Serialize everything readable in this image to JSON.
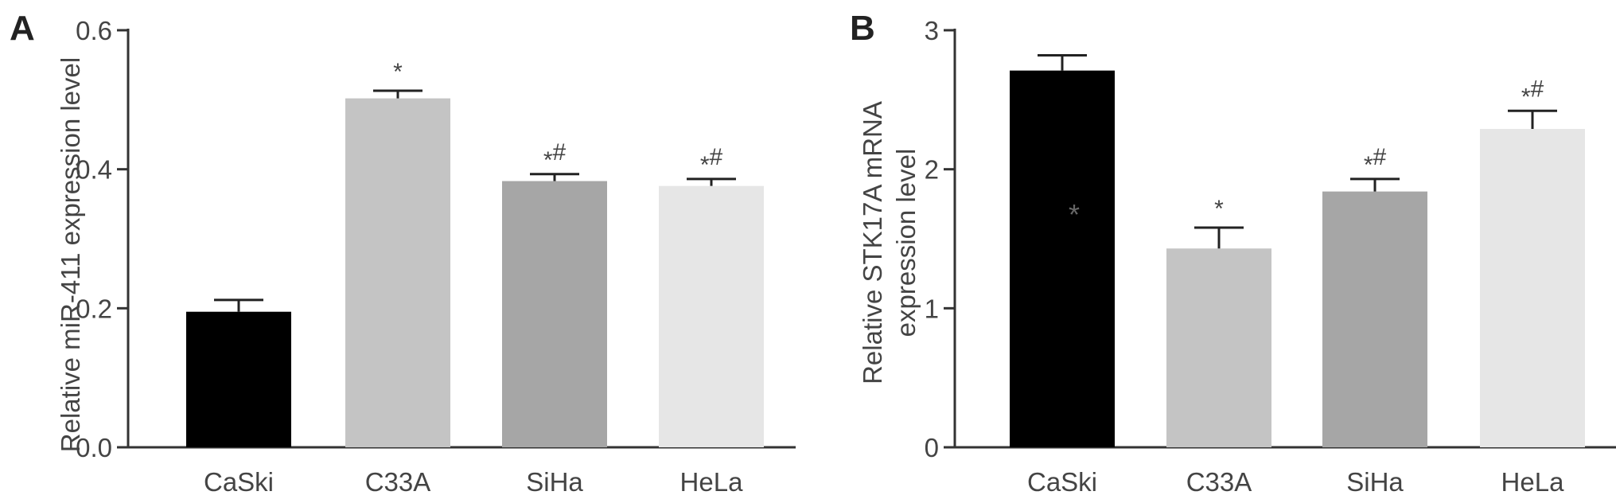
{
  "chart_data": [
    {
      "panel_label": "A",
      "type": "bar",
      "categories": [
        "CaSki",
        "C33A",
        "SiHa",
        "HeLa"
      ],
      "values": [
        0.195,
        0.502,
        0.383,
        0.376
      ],
      "errors": [
        0.017,
        0.011,
        0.01,
        0.01
      ],
      "annotations": [
        "",
        "*",
        "*#",
        "*#"
      ],
      "bar_colors": [
        "#000000",
        "#c4c4c4",
        "#a6a6a6",
        "#e6e6e6"
      ],
      "ylabel": "Relative miR-411 expression level",
      "ylim": [
        0,
        0.6
      ],
      "yticks": [
        0.0,
        0.2,
        0.4,
        0.6
      ],
      "ytick_labels": [
        "0.0",
        "0.2",
        "0.4",
        "0.6"
      ],
      "grid": false
    },
    {
      "panel_label": "B",
      "type": "bar",
      "categories": [
        "CaSki",
        "C33A",
        "SiHa",
        "HeLa"
      ],
      "values": [
        2.71,
        1.43,
        1.84,
        2.29
      ],
      "errors": [
        0.11,
        0.15,
        0.09,
        0.13
      ],
      "annotations": [
        "",
        "*",
        "*#",
        "*#"
      ],
      "bar_colors": [
        "#000000",
        "#c4c4c4",
        "#a6a6a6",
        "#e6e6e6"
      ],
      "ylabel_lines": [
        "Relative STK17A mRNA",
        "expression level"
      ],
      "ylim": [
        0,
        3
      ],
      "yticks": [
        0,
        1,
        2,
        3
      ],
      "ytick_labels": [
        "0",
        "1",
        "2",
        "3"
      ],
      "stray_mark": "*",
      "grid": false
    }
  ]
}
